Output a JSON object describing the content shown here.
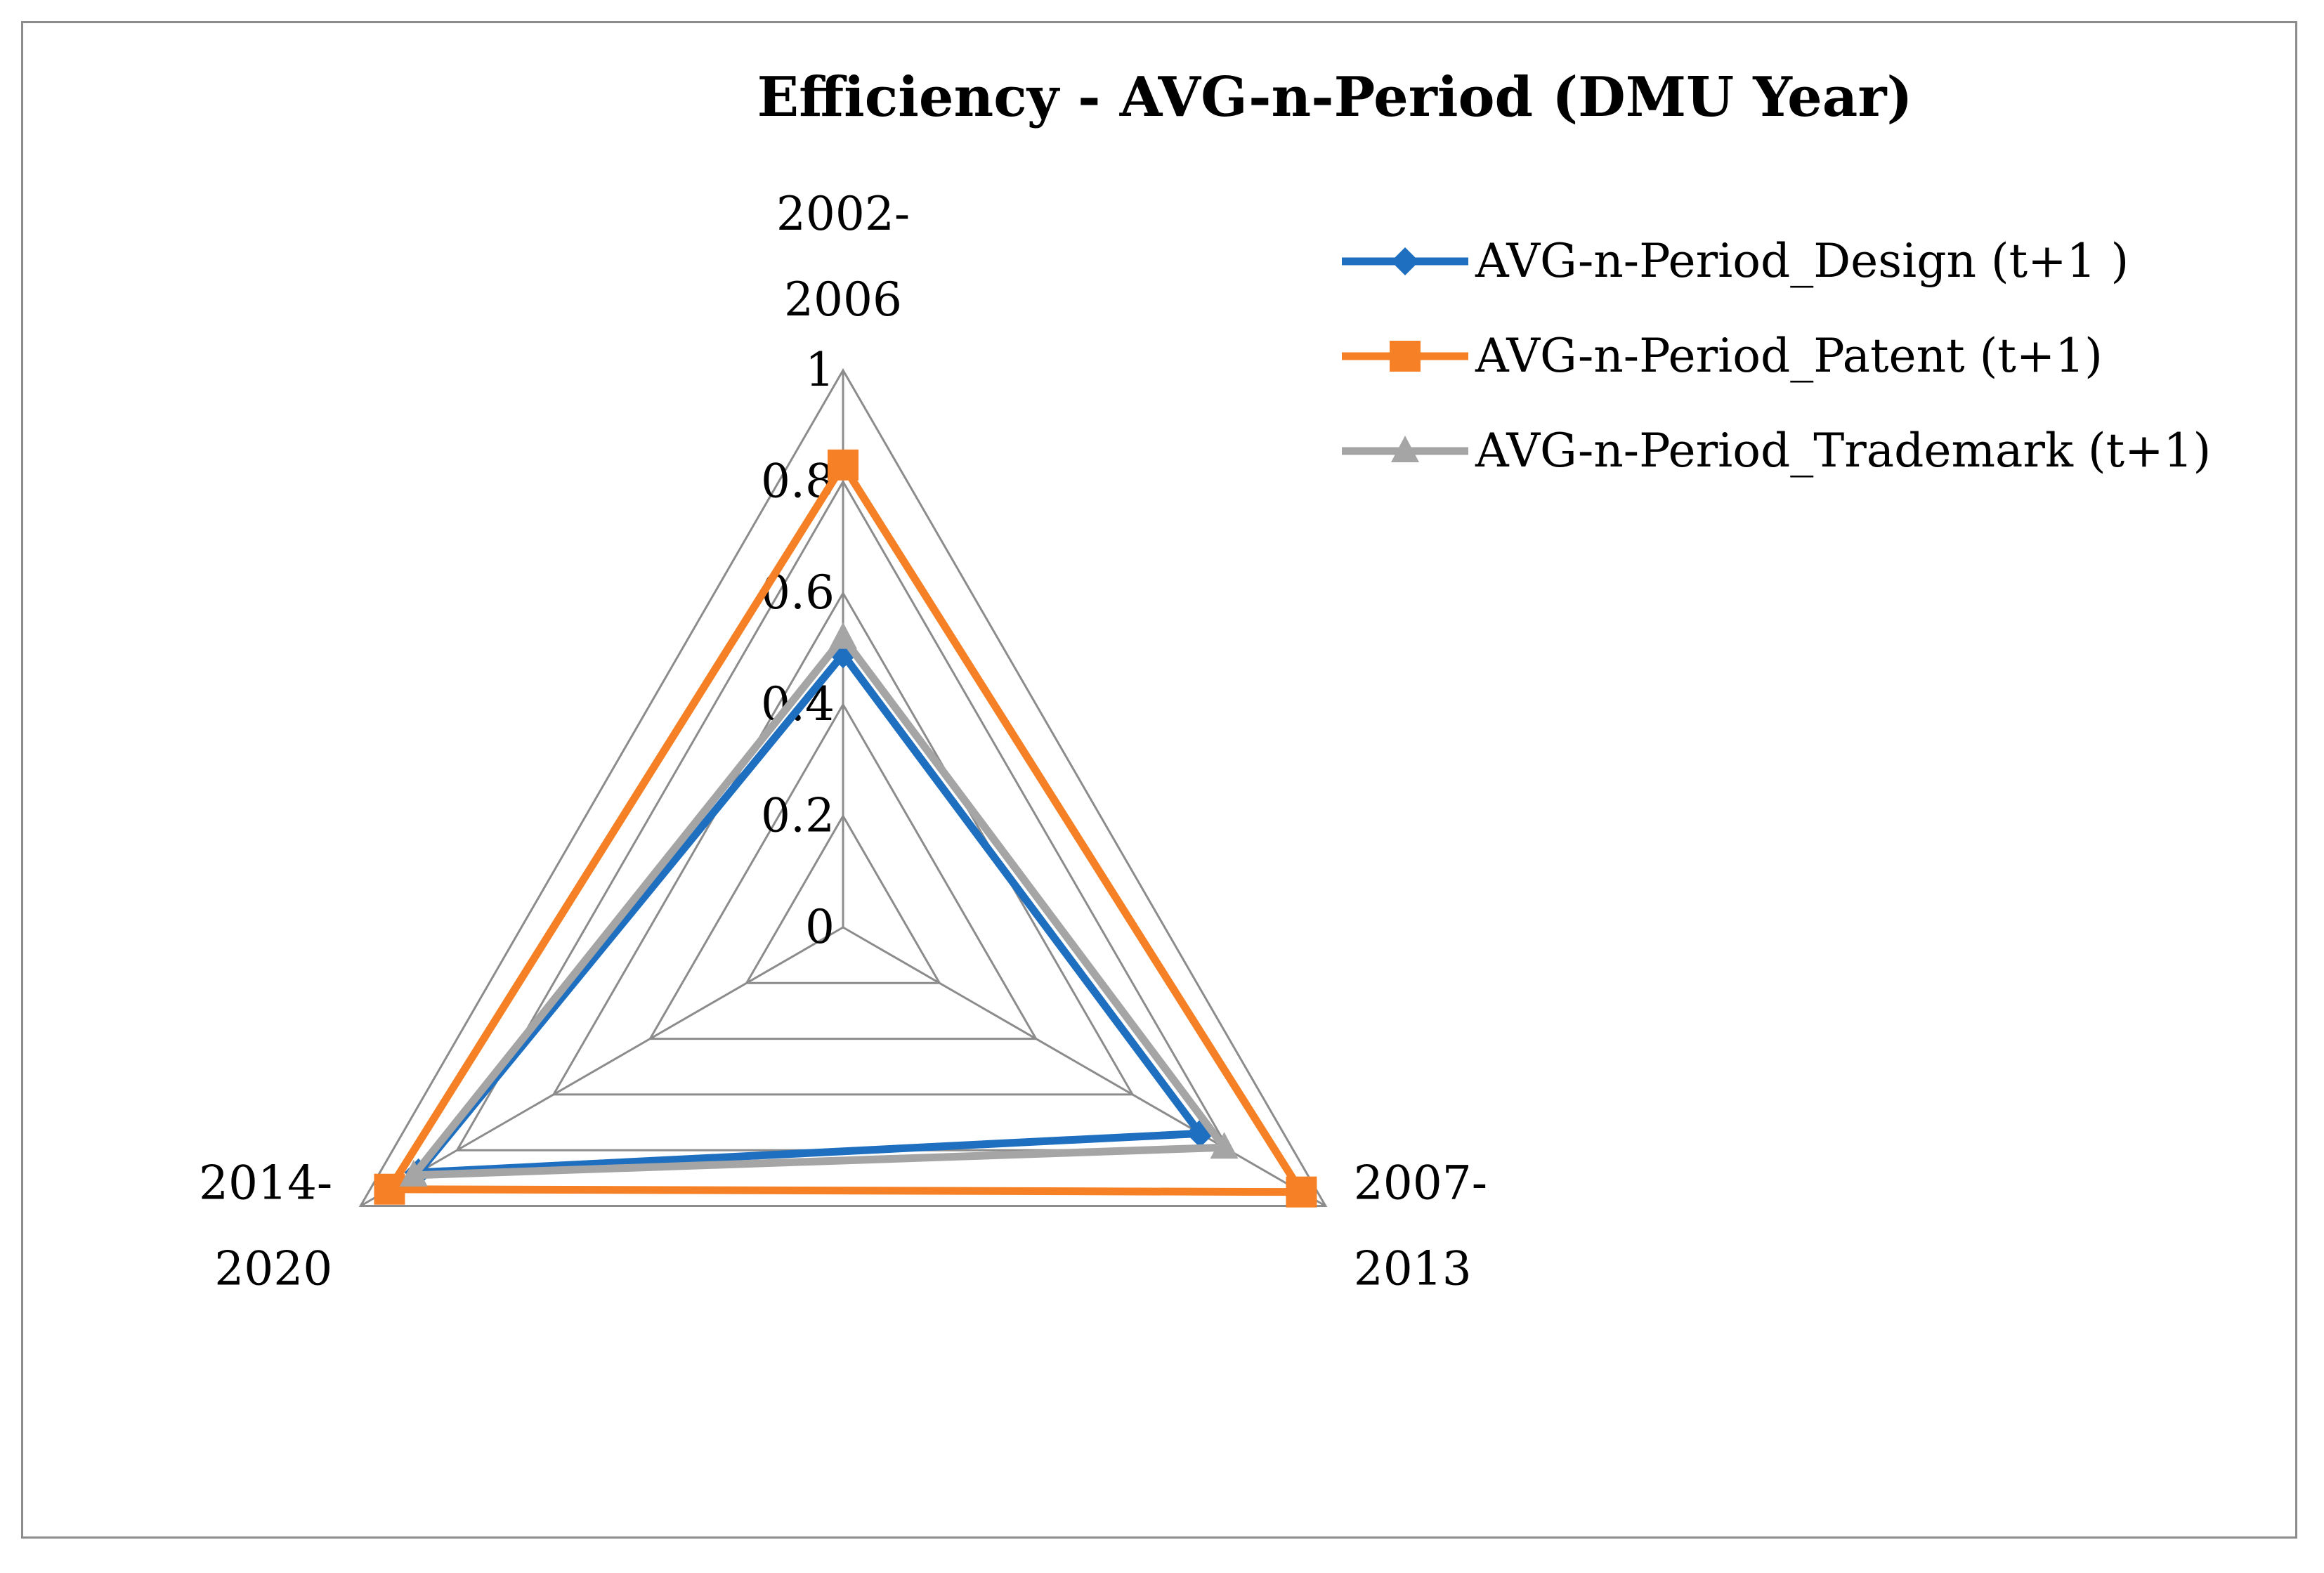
{
  "chart_data": {
    "type": "radar",
    "title": "Efficiency - AVG-n-Period  (DMU Year)",
    "categories": [
      [
        "2002-",
        "2006"
      ],
      [
        "2007-",
        "2013"
      ],
      [
        "2014-",
        "2020"
      ]
    ],
    "radial_ticks": [
      "0",
      "0.2",
      "0.4",
      "0.6",
      "0.8",
      "1"
    ],
    "rlim": [
      0,
      1
    ],
    "legend_position": "top-right",
    "series": [
      {
        "name": "AVG-n-Period_Design (t+1 )",
        "values": [
          0.49,
          0.74,
          0.88
        ],
        "color": "#1f6fc0",
        "marker": "diamond"
      },
      {
        "name": "AVG-n-Period_Patent (t+1)",
        "values": [
          0.83,
          0.95,
          0.94
        ],
        "color": "#f58025",
        "marker": "square"
      },
      {
        "name": "AVG-n-Period_Trademark (t+1)",
        "values": [
          0.52,
          0.79,
          0.89
        ],
        "color": "#a5a5a5",
        "marker": "triangle"
      }
    ]
  }
}
